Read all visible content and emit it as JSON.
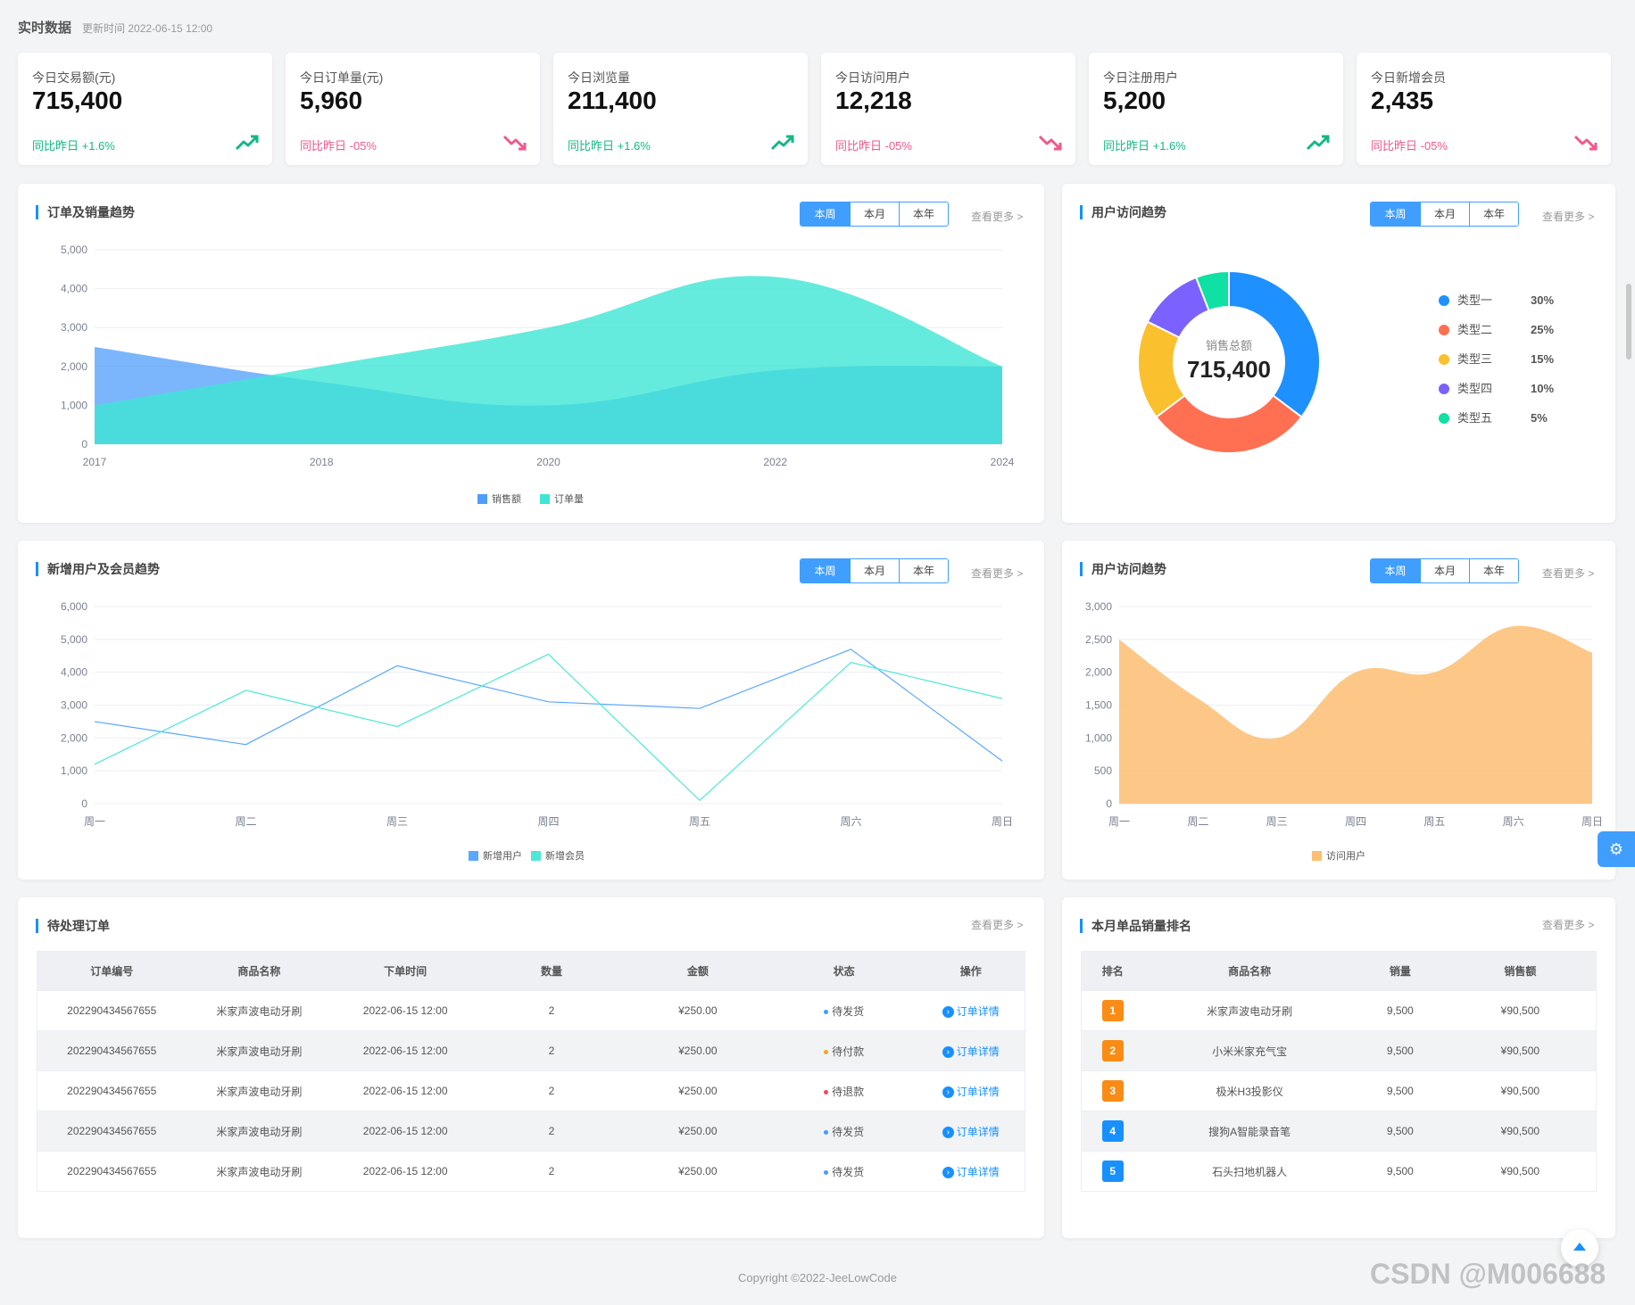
{
  "header": {
    "title": "实时数据",
    "updated": "更新时间 2022-06-15 12:00"
  },
  "stats": [
    {
      "label": "今日交易额(元)",
      "value": "715,400",
      "compare": "同比昨日 +1.6%",
      "dir": "up"
    },
    {
      "label": "今日订单量(元)",
      "value": "5,960",
      "compare": "同比昨日 -05%",
      "dir": "down"
    },
    {
      "label": "今日浏览量",
      "value": "211,400",
      "compare": "同比昨日 +1.6%",
      "dir": "up"
    },
    {
      "label": "今日访问用户",
      "value": "12,218",
      "compare": "同比昨日 -05%",
      "dir": "down"
    },
    {
      "label": "今日注册用户",
      "value": "5,200",
      "compare": "同比昨日 +1.6%",
      "dir": "up"
    },
    {
      "label": "今日新增会员",
      "value": "2,435",
      "compare": "同比昨日 -05%",
      "dir": "down"
    }
  ],
  "tabs": {
    "week": "本周",
    "month": "本月",
    "year": "本年"
  },
  "more": "查看更多 >",
  "panels": {
    "order_trend": "订单及销量趋势",
    "user_visit": "用户访问趋势",
    "new_users": "新增用户及会员趋势",
    "user_visit2": "用户访问趋势",
    "pending": "待处理订单",
    "ranking": "本月单品销量排名"
  },
  "colors": {
    "accent": "#409eff",
    "blue": "#5aa8ff",
    "cyan": "#4ee8d8",
    "orange": "#fdc27f",
    "up": "#12b886",
    "down": "#f0588c"
  },
  "chart_data": [
    {
      "type": "area",
      "title": "订单及销量趋势",
      "x": [
        "2017",
        "2018",
        "2020",
        "2022",
        "2024"
      ],
      "ylim": [
        0,
        5000
      ],
      "yticks": [
        "5,000",
        "4,000",
        "3,000",
        "2,000",
        "1,000",
        "0"
      ],
      "series": [
        {
          "name": "销售额",
          "values": [
            2500,
            1600,
            1000,
            1900,
            2000
          ]
        },
        {
          "name": "订单量",
          "values": [
            1000,
            2000,
            3000,
            4300,
            2000
          ]
        }
      ]
    },
    {
      "type": "pie",
      "title": "用户访问趋势",
      "center_label": "销售总额",
      "center_value": "715,400",
      "slices": [
        {
          "name": "类型一",
          "value": 30,
          "label": "30%",
          "color": "#1e90ff"
        },
        {
          "name": "类型二",
          "value": 25,
          "label": "25%",
          "color": "#ff7052"
        },
        {
          "name": "类型三",
          "value": 15,
          "label": "15%",
          "color": "#fbc02d"
        },
        {
          "name": "类型四",
          "value": 10,
          "label": "10%",
          "color": "#7b61ff"
        },
        {
          "name": "类型五",
          "value": 5,
          "label": "5%",
          "color": "#0fe0a4"
        }
      ]
    },
    {
      "type": "line",
      "title": "新增用户及会员趋势",
      "x": [
        "周一",
        "周二",
        "周三",
        "周四",
        "周五",
        "周六",
        "周日"
      ],
      "ylim": [
        0,
        6000
      ],
      "yticks": [
        "6,000",
        "5,000",
        "4,000",
        "3,000",
        "2,000",
        "1,000",
        "0"
      ],
      "series": [
        {
          "name": "新增用户",
          "values": [
            2500,
            1800,
            4200,
            3100,
            2900,
            4700,
            1300
          ]
        },
        {
          "name": "新增会员",
          "values": [
            1200,
            3450,
            2350,
            4550,
            100,
            4300,
            3200
          ]
        }
      ]
    },
    {
      "type": "area",
      "title": "用户访问趋势",
      "x": [
        "周一",
        "周二",
        "周三",
        "周四",
        "周五",
        "周六",
        "周日"
      ],
      "ylim": [
        0,
        3000
      ],
      "yticks": [
        "3,000",
        "2,500",
        "2,000",
        "1,500",
        "1,000",
        "500",
        "0"
      ],
      "series": [
        {
          "name": "访问用户",
          "values": [
            2500,
            1600,
            1000,
            2000,
            2000,
            2700,
            2300
          ]
        }
      ]
    }
  ],
  "orders": {
    "headers": [
      "订单编号",
      "商品名称",
      "下单时间",
      "数量",
      "金额",
      "状态",
      "操作"
    ],
    "rows": [
      {
        "id": "202290434567655",
        "name": "米家声波电动牙刷",
        "time": "2022-06-15 12:00",
        "qty": "2",
        "amount": "¥250.00",
        "status": "待发货",
        "scolor": "#409eff",
        "op": "订单详情"
      },
      {
        "id": "202290434567655",
        "name": "米家声波电动牙刷",
        "time": "2022-06-15 12:00",
        "qty": "2",
        "amount": "¥250.00",
        "status": "待付款",
        "scolor": "#f5a623",
        "op": "订单详情"
      },
      {
        "id": "202290434567655",
        "name": "米家声波电动牙刷",
        "time": "2022-06-15 12:00",
        "qty": "2",
        "amount": "¥250.00",
        "status": "待退款",
        "scolor": "#f5455c",
        "op": "订单详情"
      },
      {
        "id": "202290434567655",
        "name": "米家声波电动牙刷",
        "time": "2022-06-15 12:00",
        "qty": "2",
        "amount": "¥250.00",
        "status": "待发货",
        "scolor": "#409eff",
        "op": "订单详情"
      },
      {
        "id": "202290434567655",
        "name": "米家声波电动牙刷",
        "time": "2022-06-15 12:00",
        "qty": "2",
        "amount": "¥250.00",
        "status": "待发货",
        "scolor": "#409eff",
        "op": "订单详情"
      }
    ]
  },
  "ranking": {
    "headers": [
      "排名",
      "商品名称",
      "销量",
      "销售额"
    ],
    "rows": [
      {
        "rank": "1",
        "name": "米家声波电动牙刷",
        "sales": "9,500",
        "amount": "¥90,500",
        "color": "#fa8c16"
      },
      {
        "rank": "2",
        "name": "小米米家充气宝",
        "sales": "9,500",
        "amount": "¥90,500",
        "color": "#fa8c16"
      },
      {
        "rank": "3",
        "name": "极米H3投影仪",
        "sales": "9,500",
        "amount": "¥90,500",
        "color": "#fa8c16"
      },
      {
        "rank": "4",
        "name": "搜狗A智能录音笔",
        "sales": "9,500",
        "amount": "¥90,500",
        "color": "#1890ff"
      },
      {
        "rank": "5",
        "name": "石头扫地机器人",
        "sales": "9,500",
        "amount": "¥90,500",
        "color": "#1890ff"
      }
    ]
  },
  "footer": "Copyright ©2022-JeeLowCode",
  "watermark": "CSDN @M006688"
}
